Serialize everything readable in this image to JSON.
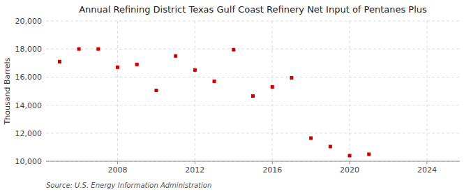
{
  "chart_data": {
    "type": "scatter",
    "title": "Annual Refining District Texas Gulf Coast Refinery Net Input of Pentanes Plus",
    "y_label": "Thousand Barrels",
    "annotation": "Source: U.S. Energy Information Administration",
    "x": [
      2005,
      2006,
      2007,
      2008,
      2009,
      2010,
      2011,
      2012,
      2013,
      2014,
      2015,
      2016,
      2017,
      2018,
      2019,
      2020,
      2021
    ],
    "values": [
      17100,
      18000,
      18000,
      16700,
      16900,
      15050,
      17500,
      16500,
      15700,
      17950,
      14650,
      15300,
      15950,
      11650,
      11050,
      10400,
      10500
    ],
    "color": "#cc0000",
    "marker": "square",
    "xlim": [
      2004.3,
      2025.7
    ],
    "ylim": [
      10000,
      20000
    ],
    "xticks": [
      2008,
      2012,
      2016,
      2020,
      2024
    ],
    "yticks": [
      {
        "value": 10000,
        "label": "10,000"
      },
      {
        "value": 12000,
        "label": "12,000"
      },
      {
        "value": 14000,
        "label": "14,000"
      },
      {
        "value": 16000,
        "label": "16,000"
      },
      {
        "value": 18000,
        "label": "18,000"
      },
      {
        "value": 20000,
        "label": "20,000"
      }
    ],
    "grid": true
  }
}
